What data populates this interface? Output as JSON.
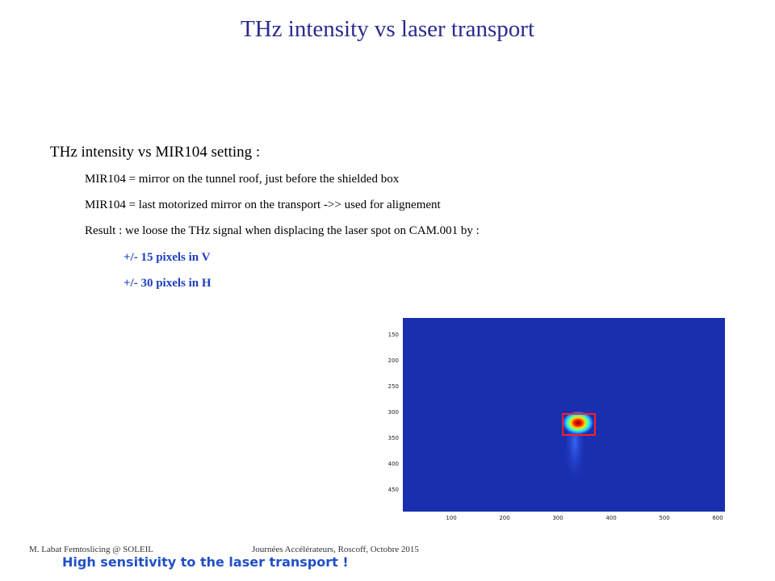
{
  "title": "THz intensity vs laser transport",
  "heading": "THz intensity vs MIR104 setting :",
  "bullets": [
    "MIR104 = mirror on the tunnel roof, just before the shielded box",
    "MIR104 = last motorized mirror on the transport ->> used for alignement",
    "Result : we loose the THz signal when displacing the laser spot on CAM.001 by :"
  ],
  "sub_bullets": [
    "+/- 15 pixels in V",
    "+/- 30 pixels in H"
  ],
  "image": {
    "y_ticks": [
      "150",
      "200",
      "250",
      "300",
      "350",
      "400",
      "450"
    ],
    "x_ticks": [
      "100",
      "200",
      "300",
      "400",
      "500",
      "600"
    ],
    "background_color": "#1a2fb0",
    "box_color": "#ff2020"
  },
  "footer_left": "M. Labat Femtoslicing @ SOLEIL",
  "footer_right": "Journées Accélérateurs, Roscoff, Octobre 2015",
  "conclusion": "High sensitivity to the laser transport !"
}
